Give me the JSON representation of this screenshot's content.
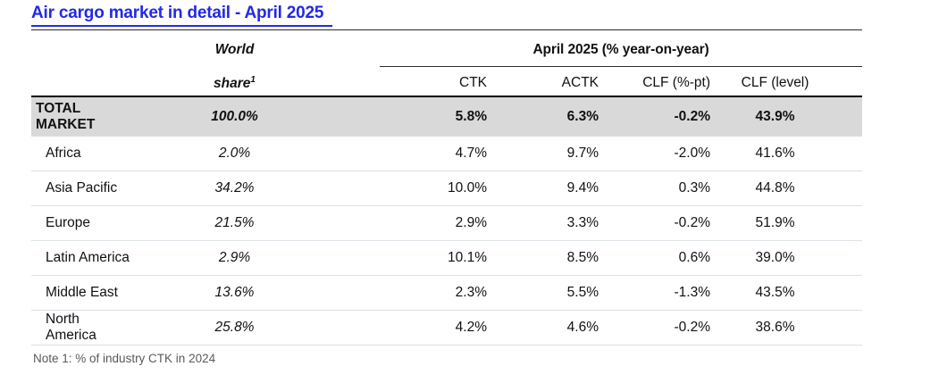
{
  "title": "Air cargo market in detail - April 2025",
  "table": {
    "world_share_header": {
      "line1": "World",
      "line2": "share",
      "footnote_marker": "1"
    },
    "period_group_header": "April 2025 (% year-on-year)",
    "columns": {
      "ctk": "CTK",
      "actk": "ACTK",
      "clf_pt": "CLF (%-pt)",
      "clf_level": "CLF (level)"
    },
    "rows": [
      {
        "region": "TOTAL\nMARKET",
        "world_share": "100.0%",
        "ctk": "5.8%",
        "actk": "6.3%",
        "clf_pt": "-0.2%",
        "clf_level": "43.9%",
        "is_total": true
      },
      {
        "region": "Africa",
        "world_share": "2.0%",
        "ctk": "4.7%",
        "actk": "9.7%",
        "clf_pt": "-2.0%",
        "clf_level": "41.6%",
        "is_total": false
      },
      {
        "region": "Asia Pacific",
        "world_share": "34.2%",
        "ctk": "10.0%",
        "actk": "9.4%",
        "clf_pt": "0.3%",
        "clf_level": "44.8%",
        "is_total": false
      },
      {
        "region": "Europe",
        "world_share": "21.5%",
        "ctk": "2.9%",
        "actk": "3.3%",
        "clf_pt": "-0.2%",
        "clf_level": "51.9%",
        "is_total": false
      },
      {
        "region": "Latin America",
        "world_share": "2.9%",
        "ctk": "10.1%",
        "actk": "8.5%",
        "clf_pt": "0.6%",
        "clf_level": "39.0%",
        "is_total": false
      },
      {
        "region": "Middle East",
        "world_share": "13.6%",
        "ctk": "2.3%",
        "actk": "5.5%",
        "clf_pt": "-1.3%",
        "clf_level": "43.5%",
        "is_total": false
      },
      {
        "region": "North\nAmerica",
        "world_share": "25.8%",
        "ctk": "4.2%",
        "actk": "4.6%",
        "clf_pt": "-0.2%",
        "clf_level": "38.6%",
        "is_total": false
      }
    ]
  },
  "note": "Note 1: % of industry CTK in 2024",
  "colors": {
    "title_blue": "#2428E8",
    "total_row_bg": "#D9D9D9",
    "row_divider": "#D9E0E7",
    "note_gray": "#595959"
  },
  "chart_data": {
    "type": "table",
    "title": "Air cargo market in detail - April 2025",
    "value_group": "April 2025 (% year-on-year)",
    "columns": [
      "World share (% of industry CTK in 2024)",
      "CTK (% yoy)",
      "ACTK (% yoy)",
      "CLF (%-pt)",
      "CLF (level %)"
    ],
    "rows": [
      {
        "region": "TOTAL MARKET",
        "world_share": 100.0,
        "ctk": 5.8,
        "actk": 6.3,
        "clf_pt": -0.2,
        "clf_level": 43.9
      },
      {
        "region": "Africa",
        "world_share": 2.0,
        "ctk": 4.7,
        "actk": 9.7,
        "clf_pt": -2.0,
        "clf_level": 41.6
      },
      {
        "region": "Asia Pacific",
        "world_share": 34.2,
        "ctk": 10.0,
        "actk": 9.4,
        "clf_pt": 0.3,
        "clf_level": 44.8
      },
      {
        "region": "Europe",
        "world_share": 21.5,
        "ctk": 2.9,
        "actk": 3.3,
        "clf_pt": -0.2,
        "clf_level": 51.9
      },
      {
        "region": "Latin America",
        "world_share": 2.9,
        "ctk": 10.1,
        "actk": 8.5,
        "clf_pt": 0.6,
        "clf_level": 39.0
      },
      {
        "region": "Middle East",
        "world_share": 13.6,
        "ctk": 2.3,
        "actk": 5.5,
        "clf_pt": -1.3,
        "clf_level": 43.5
      },
      {
        "region": "North America",
        "world_share": 25.8,
        "ctk": 4.2,
        "actk": 4.6,
        "clf_pt": -0.2,
        "clf_level": 38.6
      }
    ],
    "note": "Note 1: % of industry CTK in 2024"
  }
}
